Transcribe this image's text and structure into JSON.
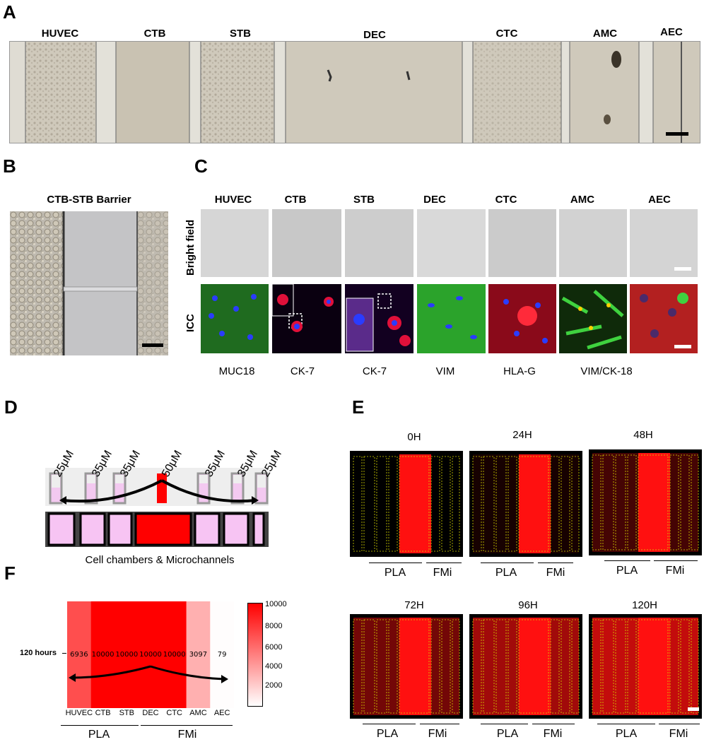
{
  "panel_labels": {
    "a": "A",
    "b": "B",
    "c": "C",
    "d": "D",
    "e": "E",
    "f": "F"
  },
  "panel_a": {
    "columns": [
      "HUVEC",
      "CTB",
      "STB",
      "DEC",
      "CTC",
      "AMC",
      "AEC"
    ]
  },
  "panel_b": {
    "title": "CTB-STB Barrier"
  },
  "panel_c": {
    "columns": [
      "HUVEC",
      "CTB",
      "STB",
      "DEC",
      "CTC",
      "AMC",
      "AEC"
    ],
    "row_labels": [
      "Bright field",
      "ICC"
    ],
    "markers": [
      "MUC18",
      "CK-7",
      "CK-7",
      "VIM",
      "HLA-G",
      "VIM/CK-18"
    ]
  },
  "panel_d": {
    "concentrations": [
      "25μM",
      "35μM",
      "35μM",
      "50μM",
      "35μM",
      "35μM",
      "25μM"
    ],
    "caption": "Cell chambers & Microchannels"
  },
  "panel_e": {
    "timepoints": [
      "0H",
      "24H",
      "48H",
      "72H",
      "96H",
      "120H"
    ],
    "group_labels": [
      "PLA",
      "FMi"
    ]
  },
  "panel_f": {
    "row_label": "120 hours",
    "columns": [
      "HUVEC",
      "CTB",
      "STB",
      "DEC",
      "CTC",
      "AMC",
      "AEC"
    ],
    "values": [
      6936,
      10000,
      10000,
      10000,
      10000,
      3097,
      79
    ],
    "colorbar_ticks": [
      "10000",
      "8000",
      "6000",
      "4000",
      "2000"
    ],
    "groups": [
      "PLA",
      "FMi"
    ],
    "accent": "#ff0000"
  }
}
